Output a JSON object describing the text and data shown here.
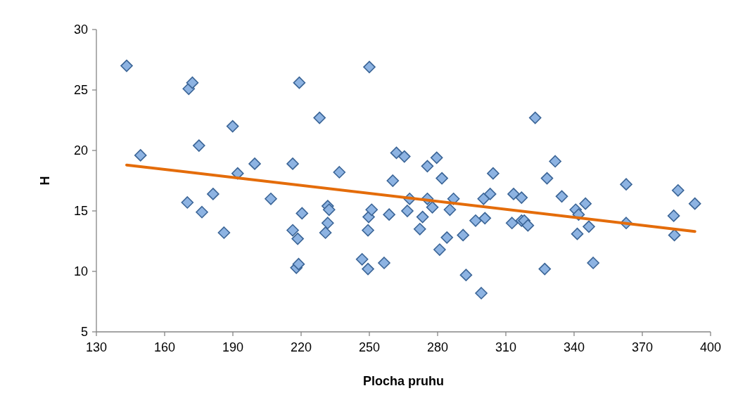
{
  "chart_data": {
    "type": "scatter",
    "xlabel": "Plocha pruhu",
    "ylabel": "H",
    "xlim": [
      130,
      400
    ],
    "xticks": [
      130,
      160,
      190,
      220,
      250,
      280,
      310,
      340,
      370,
      400
    ],
    "ylim": [
      5,
      30
    ],
    "yticks": [
      5,
      10,
      15,
      20,
      25,
      30
    ],
    "grid": false,
    "marker": "diamond",
    "series": [
      {
        "color": "#8db3e2",
        "x": [
          143.3,
          149.4,
          170.6,
          172.2,
          175.1,
          170.0,
          176.4,
          181.3,
          186.1,
          189.9,
          192.1,
          199.6,
          206.7,
          216.3,
          216.3,
          218.5,
          217.9,
          218.9,
          219.2,
          220.4,
          228.1,
          230.7,
          231.7,
          231.7,
          232.3,
          236.8,
          246.8,
          249.4,
          249.4,
          249.7,
          251.0,
          250.0,
          256.5,
          258.7,
          260.3,
          261.9,
          265.4,
          266.7,
          267.7,
          272.2,
          273.4,
          275.5,
          275.5,
          277.7,
          279.6,
          280.9,
          281.9,
          284.1,
          285.4,
          287.0,
          291.2,
          292.5,
          296.7,
          299.2,
          300.2,
          300.8,
          303.1,
          304.4,
          312.7,
          313.4,
          316.9,
          316.9,
          318.1,
          319.7,
          322.9,
          327.1,
          328.1,
          331.7,
          334.6,
          340.7,
          341.4,
          342.0,
          345.0,
          346.5,
          348.4,
          362.9,
          362.9,
          383.8,
          384.1,
          385.7,
          393.1
        ],
        "values": [
          27.0,
          19.6,
          25.1,
          25.6,
          20.4,
          15.7,
          14.9,
          16.4,
          13.2,
          22.0,
          18.1,
          18.9,
          16.0,
          18.9,
          13.4,
          12.7,
          10.3,
          10.6,
          25.6,
          14.8,
          22.7,
          13.2,
          14.0,
          15.4,
          15.1,
          18.2,
          11.0,
          10.2,
          13.4,
          14.5,
          15.1,
          26.9,
          10.7,
          14.7,
          17.5,
          19.8,
          19.5,
          15.0,
          16.0,
          13.5,
          14.5,
          18.7,
          16.0,
          15.3,
          19.4,
          11.8,
          17.7,
          12.8,
          15.1,
          16.0,
          13.0,
          9.7,
          14.2,
          8.2,
          16.0,
          14.4,
          16.4,
          18.1,
          14.0,
          16.4,
          16.1,
          14.2,
          14.2,
          13.8,
          22.7,
          10.2,
          17.7,
          19.1,
          16.2,
          15.1,
          13.1,
          14.7,
          15.6,
          13.7,
          10.7,
          17.2,
          14.0,
          14.6,
          13.0,
          16.7,
          15.6
        ]
      },
      {
        "type": "line",
        "color": "#e46c0a",
        "marker": "none",
        "line_style": "solid",
        "x": [
          143.3,
          393.1
        ],
        "values": [
          18.8,
          13.3
        ]
      }
    ]
  }
}
